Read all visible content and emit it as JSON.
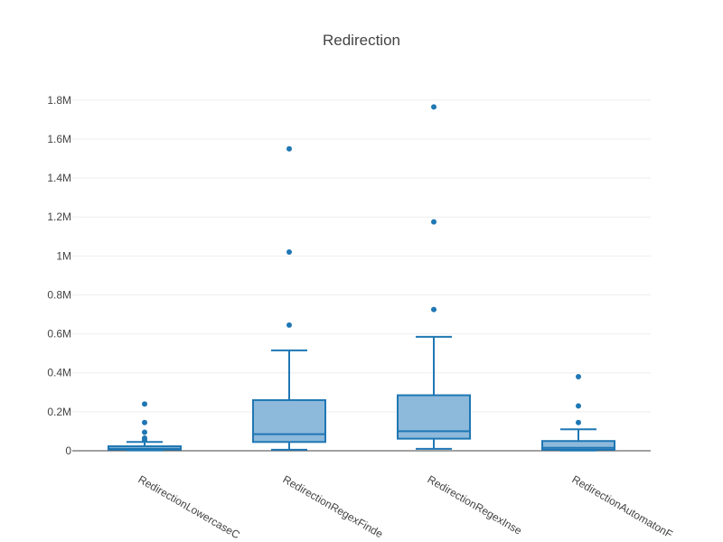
{
  "chart_data": {
    "type": "box",
    "title": "Redirection",
    "xlabel": "",
    "ylabel": "",
    "ylim": [
      0,
      1850000
    ],
    "yticks": [
      0,
      200000,
      400000,
      600000,
      800000,
      1000000,
      1200000,
      1400000,
      1600000,
      1800000
    ],
    "ytick_labels": [
      "0",
      "0.2M",
      "0.4M",
      "0.6M",
      "0.8M",
      "1M",
      "1.2M",
      "1.4M",
      "1.6M",
      "1.8M"
    ],
    "grid": true,
    "legend": false,
    "color": "#1f77b4",
    "fill_color": "#8db9db",
    "categories": [
      "RedirectionLowercaseC",
      "RedirectionRegexFinde",
      "RedirectionRegexInse",
      "RedirectionAutomatonF"
    ],
    "boxes": [
      {
        "category": "RedirectionLowercaseC",
        "min": 2000,
        "q1": 6000,
        "median": 10000,
        "q3": 23000,
        "max": 45000,
        "outliers": [
          55000,
          65000,
          95000,
          145000,
          240000
        ]
      },
      {
        "category": "RedirectionRegexFinde",
        "min": 5000,
        "q1": 45000,
        "median": 85000,
        "q3": 260000,
        "max": 515000,
        "outliers": [
          645000,
          1020000,
          1550000
        ]
      },
      {
        "category": "RedirectionRegexInse",
        "min": 10000,
        "q1": 62000,
        "median": 100000,
        "q3": 285000,
        "max": 585000,
        "outliers": [
          725000,
          1175000,
          1765000
        ]
      },
      {
        "category": "RedirectionAutomatonF",
        "min": 1000,
        "q1": 5000,
        "median": 15000,
        "q3": 50000,
        "max": 110000,
        "outliers": [
          145000,
          230000,
          380000
        ]
      }
    ]
  }
}
